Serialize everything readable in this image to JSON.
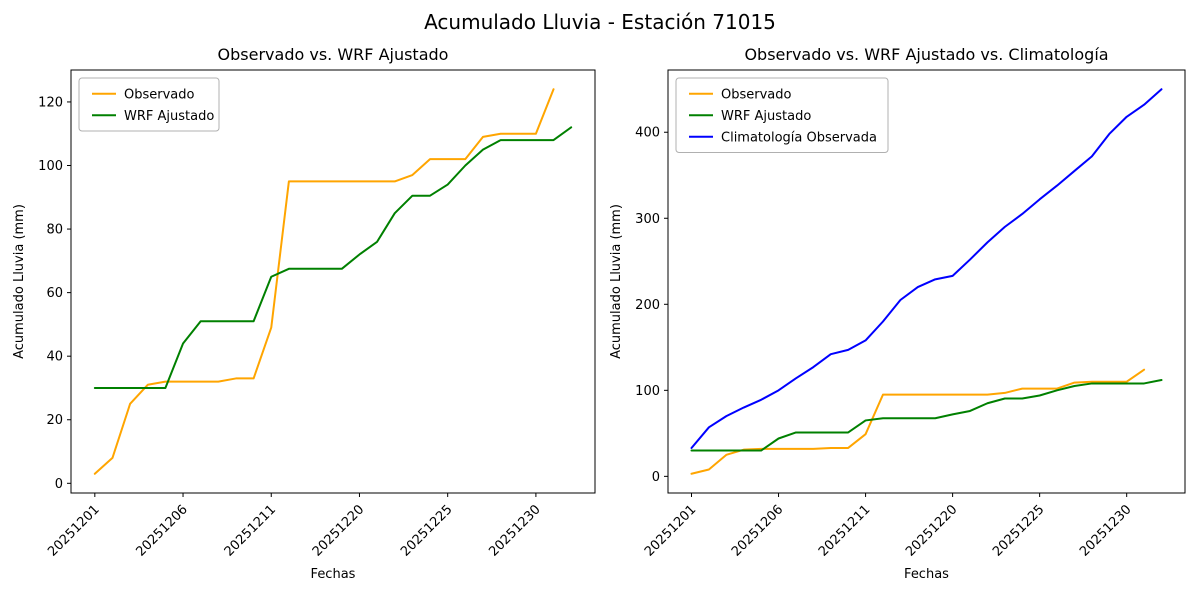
{
  "figure": {
    "suptitle": "Acumulado Lluvia - Estación 71015",
    "background_color": "#ffffff",
    "axes_color": "#000000",
    "text_color": "#000000"
  },
  "chart_data": [
    {
      "type": "line",
      "title": "Observado vs. WRF Ajustado",
      "xlabel": "Fechas",
      "ylabel": "Acumulado Lluvia (mm)",
      "x_tick_positions": [
        0,
        5,
        10,
        15,
        20,
        25
      ],
      "x_tick_labels": [
        "20251201",
        "20251206",
        "20251211",
        "20251220",
        "20251225",
        "20251230"
      ],
      "y_ticks": [
        0,
        20,
        40,
        60,
        80,
        100,
        120
      ],
      "xlim": [
        -1.35,
        28.35
      ],
      "ylim": [
        -3.05,
        130.05
      ],
      "grid": false,
      "legend_position": "upper left",
      "series": [
        {
          "name": "Observado",
          "color": "#FFA500",
          "values": [
            3,
            8,
            25,
            31,
            32,
            32,
            32,
            32,
            33,
            33,
            49,
            95,
            95,
            95,
            95,
            95,
            95,
            95,
            97,
            102,
            102,
            102,
            109,
            110,
            110,
            110,
            124
          ]
        },
        {
          "name": "WRF Ajustado",
          "color": "#008000",
          "values": [
            30,
            30,
            30,
            30,
            30,
            44,
            51,
            51,
            51,
            51,
            65,
            67.5,
            67.5,
            67.5,
            67.5,
            72,
            76,
            85,
            90.5,
            90.5,
            94,
            100,
            105,
            108,
            108,
            108,
            108,
            112
          ]
        }
      ]
    },
    {
      "type": "line",
      "title": "Observado vs. WRF Ajustado vs. Climatología",
      "xlabel": "Fechas",
      "ylabel": "Acumulado Lluvia (mm)",
      "x_tick_positions": [
        0,
        5,
        10,
        15,
        20,
        25
      ],
      "x_tick_labels": [
        "20251201",
        "20251206",
        "20251211",
        "20251220",
        "20251225",
        "20251230"
      ],
      "y_ticks": [
        0,
        100,
        200,
        300,
        400
      ],
      "xlim": [
        -1.35,
        28.35
      ],
      "ylim": [
        -19.35,
        472.35
      ],
      "grid": false,
      "legend_position": "upper left",
      "series": [
        {
          "name": "Observado",
          "color": "#FFA500",
          "values": [
            3,
            8,
            25,
            31,
            32,
            32,
            32,
            32,
            33,
            33,
            49,
            95,
            95,
            95,
            95,
            95,
            95,
            95,
            97,
            102,
            102,
            102,
            109,
            110,
            110,
            110,
            124
          ]
        },
        {
          "name": "WRF Ajustado",
          "color": "#008000",
          "values": [
            30,
            30,
            30,
            30,
            30,
            44,
            51,
            51,
            51,
            51,
            65,
            67.5,
            67.5,
            67.5,
            67.5,
            72,
            76,
            85,
            90.5,
            90.5,
            94,
            100,
            105,
            108,
            108,
            108,
            108,
            112
          ]
        },
        {
          "name": "Climatología Observada",
          "color": "#0000FF",
          "values": [
            33,
            57,
            70,
            80,
            89,
            100,
            114,
            127,
            142,
            147,
            158,
            180,
            205,
            220,
            229,
            233,
            252,
            272,
            290,
            305,
            322,
            338,
            355,
            372,
            398,
            418,
            432,
            450
          ]
        }
      ]
    }
  ]
}
